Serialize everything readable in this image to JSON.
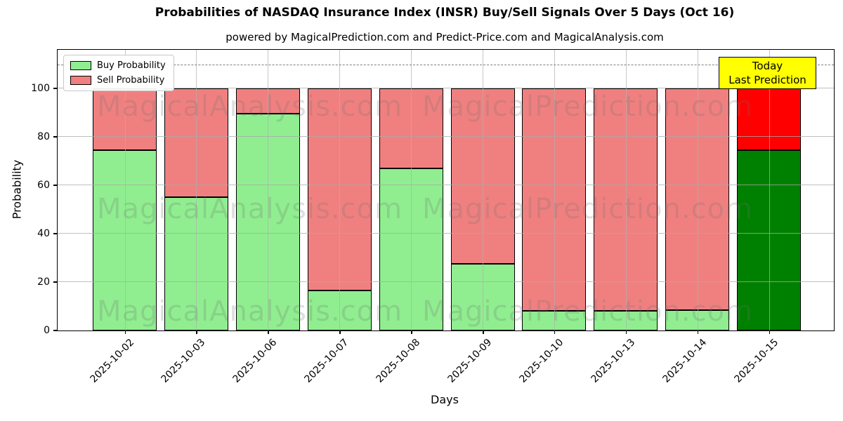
{
  "title": "Probabilities of NASDAQ Insurance Index (INSR) Buy/Sell Signals Over 5 Days (Oct 16)",
  "subtitle": "powered by MagicalPrediction.com and Predict-Price.com and MagicalAnalysis.com",
  "legend": {
    "items": [
      {
        "label": "Buy Probability",
        "color": "#90EE90"
      },
      {
        "label": "Sell Probability",
        "color": "#F08080"
      }
    ]
  },
  "annotation": {
    "line1": "Today",
    "line2": "Last Prediction",
    "bg_color": "#FFFF00"
  },
  "axes": {
    "xlabel": "Days",
    "ylabel": "Probability",
    "yticks": [
      0,
      20,
      40,
      60,
      80,
      100
    ],
    "ylim": [
      0,
      116
    ],
    "grid": true,
    "dashed_line_y": 110
  },
  "watermarks": {
    "left_text": "MagicalAnalysis.com",
    "right_text": "MagicalPrediction.com"
  },
  "chart_data": {
    "type": "bar",
    "stacked": true,
    "title": "Probabilities of NASDAQ Insurance Index (INSR) Buy/Sell Signals Over 5 Days (Oct 16)",
    "xlabel": "Days",
    "ylabel": "Probability",
    "ylim": [
      0,
      116
    ],
    "legend_position": "upper left",
    "categories": [
      "2025-10-02",
      "2025-10-03",
      "2025-10-06",
      "2025-10-07",
      "2025-10-08",
      "2025-10-09",
      "2025-10-10",
      "2025-10-13",
      "2025-10-14",
      "2025-10-15"
    ],
    "series": [
      {
        "name": "Buy Probability",
        "color": "#90EE90",
        "highlight_last_color": "#008000",
        "values": [
          74.5,
          55,
          89.5,
          16.5,
          67,
          27.5,
          8,
          8,
          8.5,
          74.5
        ]
      },
      {
        "name": "Sell Probability",
        "color": "#F08080",
        "highlight_last_color": "#FF0000",
        "values": [
          25.5,
          45,
          10.5,
          83.5,
          33,
          72.5,
          92,
          92,
          91.5,
          25.5
        ]
      }
    ],
    "annotation_on_last_bar": "Today / Last Prediction",
    "reference_line": {
      "y": 110,
      "style": "dashed",
      "color": "#7f7f7f"
    }
  }
}
